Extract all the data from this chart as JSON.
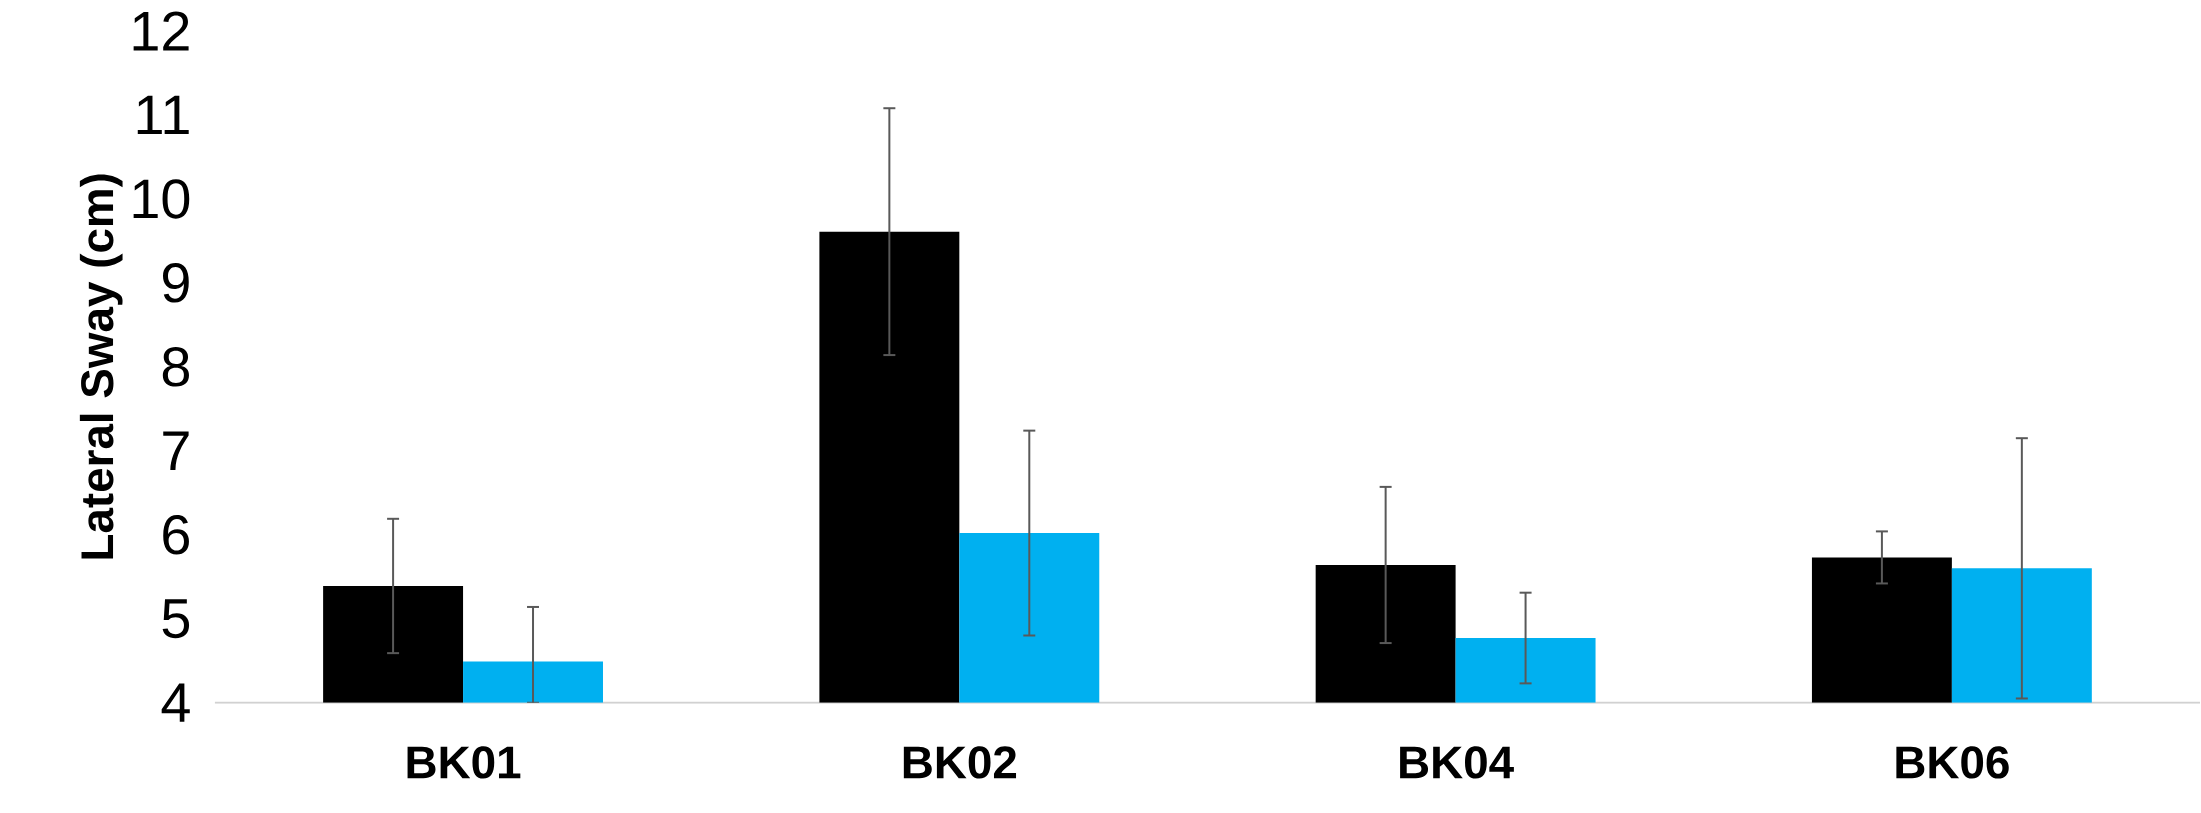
{
  "chart_data": {
    "type": "bar",
    "ylabel": "Lateral Sway (cm)",
    "categories": [
      "BK01",
      "BK02",
      "BK04",
      "BK06"
    ],
    "ylim": [
      4,
      12
    ],
    "yticks": [
      4,
      5,
      6,
      7,
      8,
      9,
      10,
      11,
      12
    ],
    "series": [
      {
        "color": "#000000",
        "values": [
          5.39,
          9.61,
          5.64,
          5.73
        ],
        "errors": [
          0.8,
          1.47,
          0.93,
          0.31
        ]
      },
      {
        "color": "#00b0f0",
        "values": [
          4.49,
          6.02,
          4.77,
          5.6
        ],
        "errors": [
          [
            4,
            5.14
          ],
          1.22,
          0.54,
          1.55
        ]
      }
    ]
  }
}
